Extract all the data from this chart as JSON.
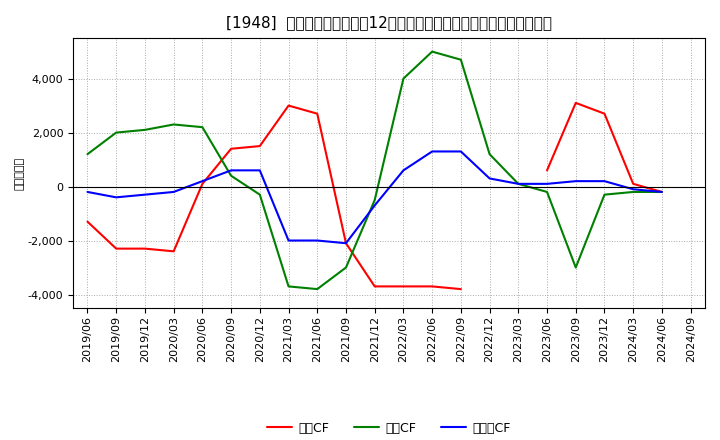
{
  "title": "[1948]  キャッシュフローの12か月移動合計の対前年同期増減額の推移",
  "ylabel": "（百万円）",
  "x_labels": [
    "2019/06",
    "2019/09",
    "2019/12",
    "2020/03",
    "2020/06",
    "2020/09",
    "2020/12",
    "2021/03",
    "2021/06",
    "2021/09",
    "2021/12",
    "2022/03",
    "2022/06",
    "2022/09",
    "2022/12",
    "2023/03",
    "2023/06",
    "2023/09",
    "2023/12",
    "2024/03",
    "2024/06",
    "2024/09"
  ],
  "eigyo_cf": [
    -1300,
    -2300,
    -2300,
    -2400,
    100,
    1400,
    1500,
    3000,
    2700,
    -2100,
    -3700,
    -3700,
    -3700,
    -3800,
    null,
    null,
    600,
    3100,
    2700,
    100,
    -200,
    null
  ],
  "toshi_cf": [
    1200,
    2000,
    2100,
    2300,
    2200,
    400,
    -300,
    -3700,
    -3800,
    -3000,
    -500,
    4000,
    5000,
    4700,
    1200,
    100,
    -200,
    -3000,
    -300,
    -200,
    -200,
    null
  ],
  "free_cf": [
    -200,
    -400,
    -300,
    -200,
    200,
    600,
    600,
    -2000,
    -2000,
    -2100,
    -700,
    600,
    1300,
    1300,
    300,
    100,
    100,
    200,
    200,
    -100,
    -200,
    null
  ],
  "ylim": [
    -4500,
    5500
  ],
  "yticks": [
    -4000,
    -2000,
    0,
    2000,
    4000
  ],
  "line_colors": {
    "eigyo": "#ff0000",
    "toshi": "#008000",
    "free": "#0000ff"
  },
  "legend_labels": [
    "営業CF",
    "投資CF",
    "フリーCF"
  ],
  "bg_color": "#ffffff",
  "plot_bg_color": "#ffffff",
  "grid_color": "#aaaaaa",
  "title_fontsize": 11,
  "axis_fontsize": 8,
  "legend_fontsize": 9
}
